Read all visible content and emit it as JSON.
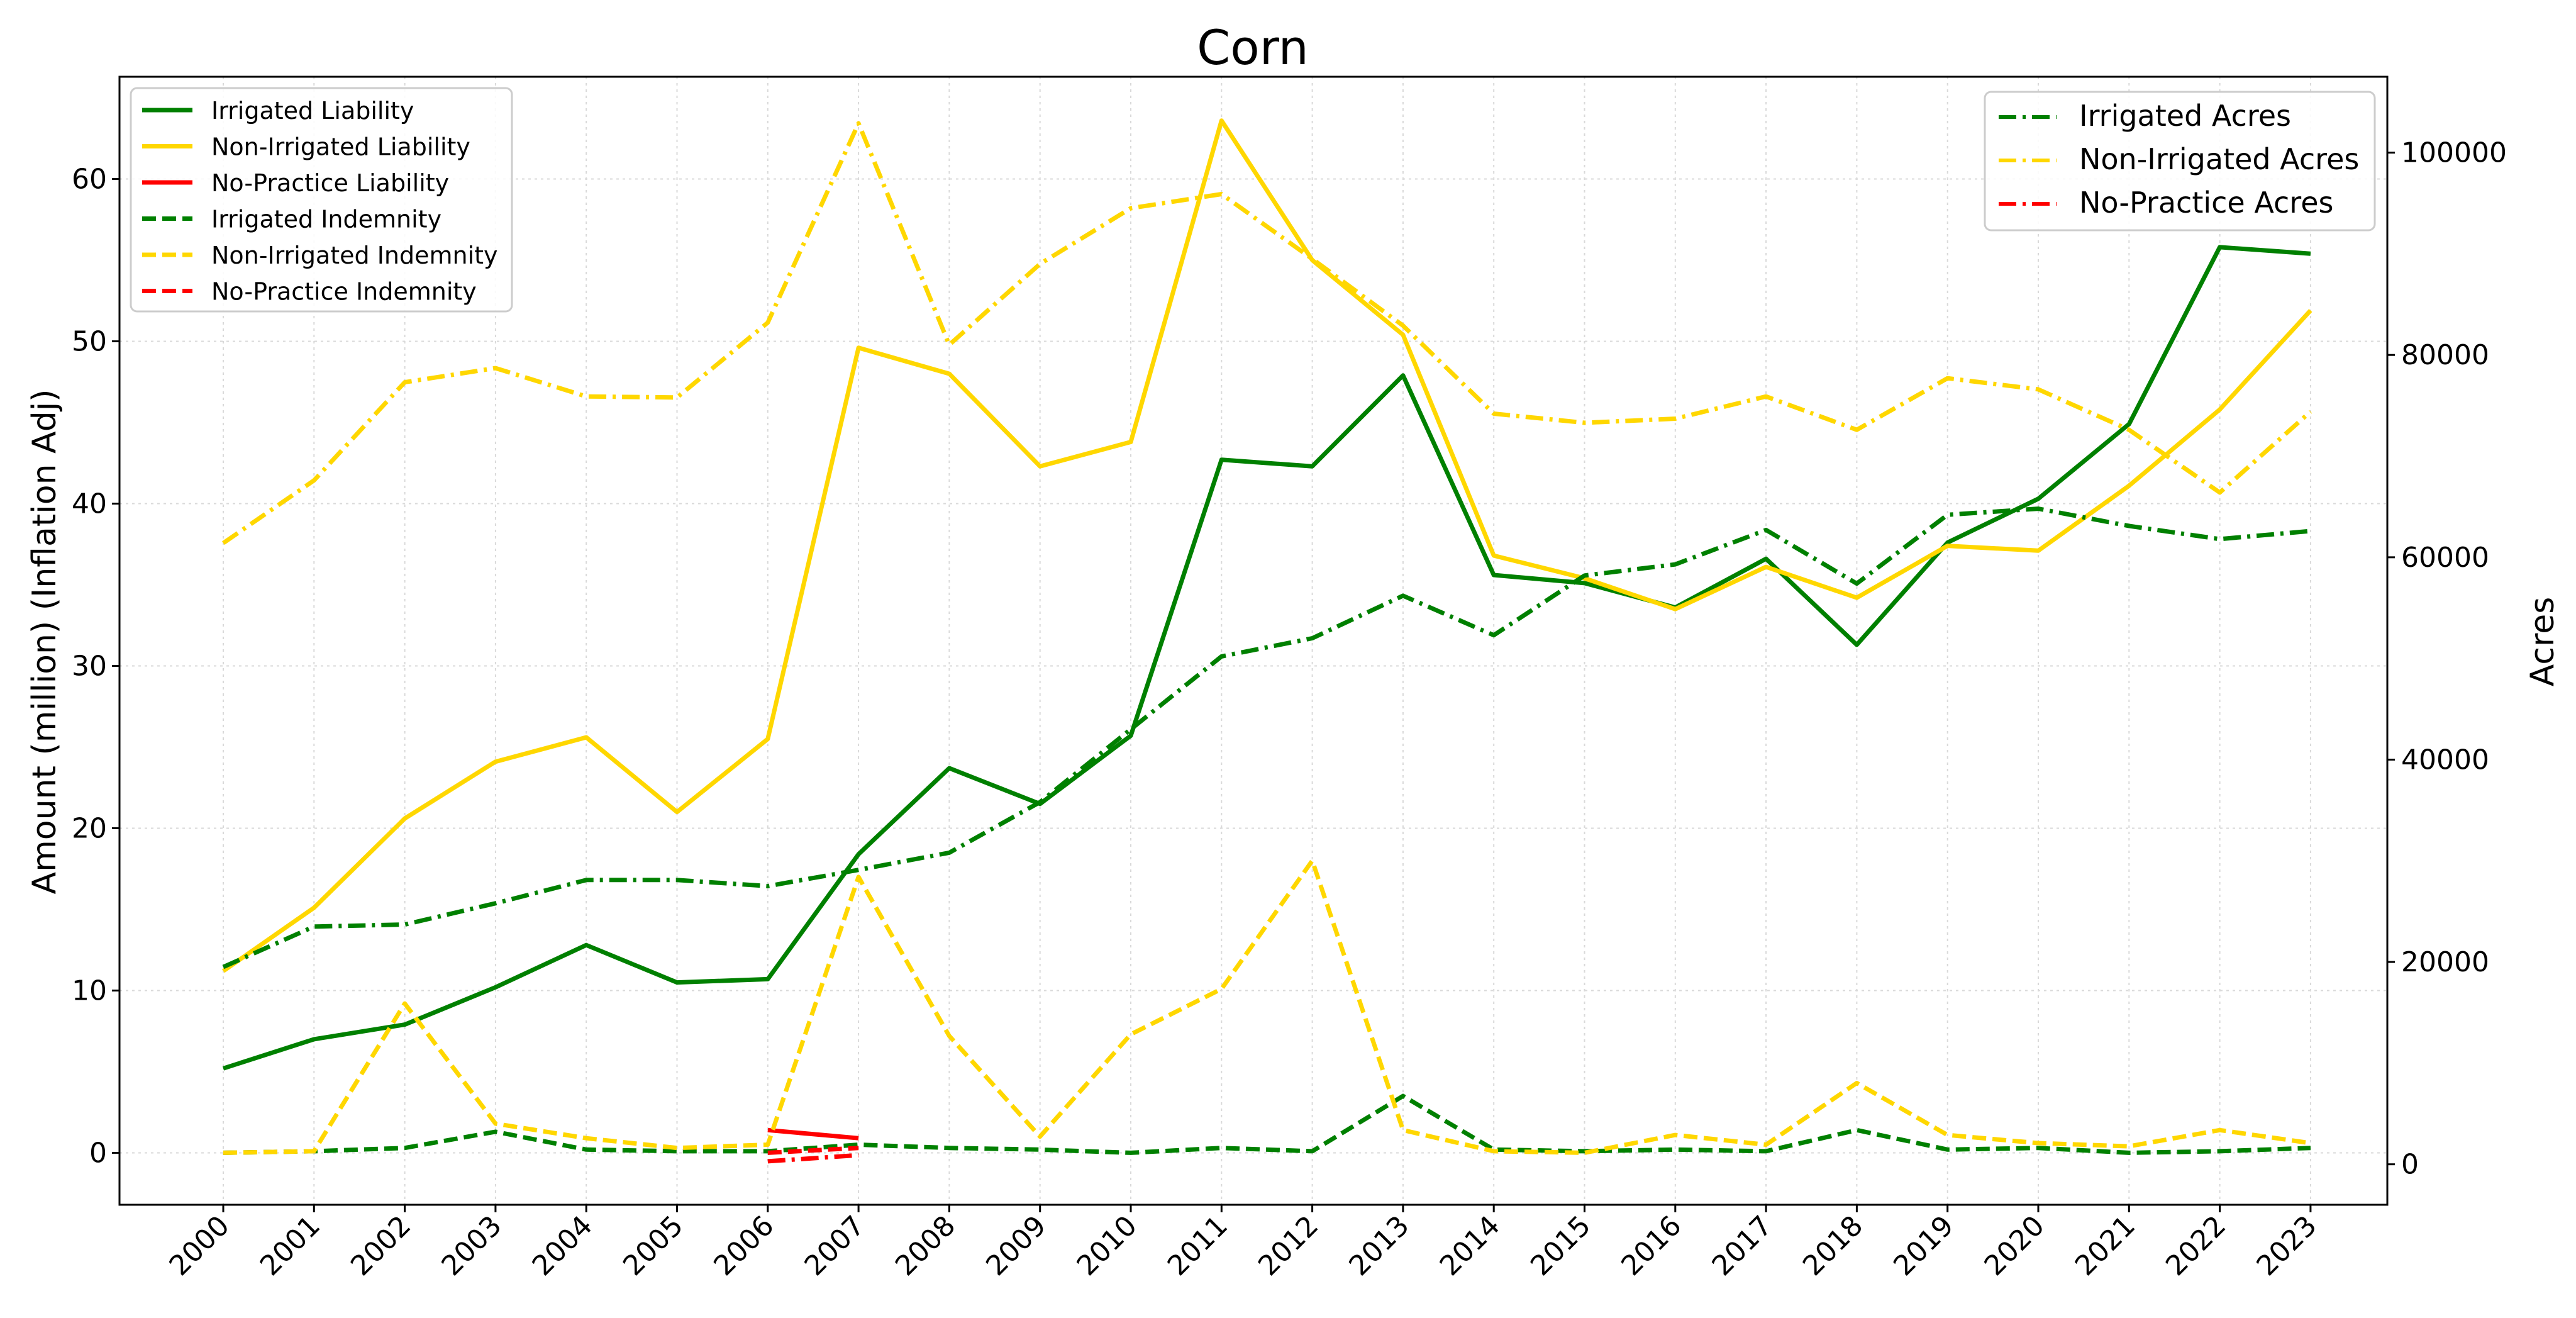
{
  "chart_data": {
    "type": "line",
    "title": "Corn",
    "xlabel": "",
    "ylabel": "Amount (million) (Inflation Adj)",
    "y2label": "Acres",
    "categories": [
      "2000",
      "2001",
      "2002",
      "2003",
      "2004",
      "2005",
      "2006",
      "2007",
      "2008",
      "2009",
      "2010",
      "2011",
      "2012",
      "2013",
      "2014",
      "2015",
      "2016",
      "2017",
      "2018",
      "2019",
      "2020",
      "2021",
      "2022",
      "2023"
    ],
    "ylim": [
      -3.2,
      66.3
    ],
    "y2lim": [
      -4000,
      107500
    ],
    "yticks": [
      0,
      10,
      20,
      30,
      40,
      50,
      60
    ],
    "y2ticks": [
      0,
      20000,
      40000,
      60000,
      80000,
      100000
    ],
    "grid": true,
    "legend_left_position": "upper left",
    "legend_right_position": "upper right",
    "colors": {
      "irrigated": "#008000",
      "non_irrigated": "#FFD700",
      "no_practice": "#FF0000"
    },
    "series": [
      {
        "name": "Irrigated Liability",
        "axis": "left",
        "style": "solid",
        "color": "#008000",
        "values": [
          5.2,
          7.0,
          7.9,
          10.2,
          12.8,
          10.5,
          10.7,
          18.4,
          23.7,
          21.5,
          25.7,
          42.7,
          42.3,
          47.9,
          35.6,
          35.1,
          33.6,
          36.6,
          31.3,
          37.6,
          40.3,
          44.9,
          55.8,
          55.4
        ]
      },
      {
        "name": "Non-Irrigated Liability",
        "axis": "left",
        "style": "solid",
        "color": "#FFD700",
        "values": [
          11.2,
          15.1,
          20.6,
          24.1,
          25.6,
          21.0,
          25.5,
          49.6,
          48.0,
          42.3,
          43.8,
          63.6,
          55.0,
          50.4,
          36.8,
          35.4,
          33.5,
          36.1,
          34.2,
          37.4,
          37.1,
          41.1,
          45.8,
          51.9
        ]
      },
      {
        "name": "No-Practice Liability",
        "axis": "left",
        "style": "solid",
        "color": "#FF0000",
        "values": [
          null,
          null,
          null,
          null,
          null,
          null,
          1.4,
          0.9,
          null,
          null,
          null,
          null,
          null,
          null,
          null,
          null,
          null,
          null,
          null,
          null,
          null,
          null,
          null,
          null
        ]
      },
      {
        "name": "Irrigated Indemnity",
        "axis": "left",
        "style": "dashed",
        "color": "#008000",
        "values": [
          0.0,
          0.1,
          0.3,
          1.3,
          0.2,
          0.1,
          0.1,
          0.5,
          0.3,
          0.2,
          0.0,
          0.3,
          0.1,
          3.5,
          0.2,
          0.1,
          0.2,
          0.1,
          1.4,
          0.2,
          0.3,
          0.0,
          0.1,
          0.3
        ]
      },
      {
        "name": "Non-Irrigated Indemnity",
        "axis": "left",
        "style": "dashed",
        "color": "#FFD700",
        "values": [
          0.0,
          0.1,
          9.2,
          1.8,
          0.9,
          0.3,
          0.5,
          17.0,
          7.2,
          1.0,
          7.3,
          10.1,
          18.0,
          1.4,
          0.1,
          0.0,
          1.1,
          0.5,
          4.3,
          1.1,
          0.6,
          0.4,
          1.4,
          0.6
        ]
      },
      {
        "name": "No-Practice Indemnity",
        "axis": "left",
        "style": "dashed",
        "color": "#FF0000",
        "values": [
          null,
          null,
          null,
          null,
          null,
          null,
          0.0,
          0.3,
          null,
          null,
          null,
          null,
          null,
          null,
          null,
          null,
          null,
          null,
          null,
          null,
          null,
          null,
          null,
          null
        ]
      },
      {
        "name": "Irrigated Acres",
        "axis": "right",
        "style": "dashdot",
        "color": "#008000",
        "values": [
          19500,
          23500,
          23700,
          25800,
          28100,
          28100,
          27500,
          29100,
          30800,
          35800,
          43000,
          50200,
          52000,
          56200,
          52300,
          58200,
          59300,
          62700,
          57400,
          64200,
          64800,
          63100,
          61800,
          62600
        ]
      },
      {
        "name": "Non-Irrigated Acres",
        "axis": "right",
        "style": "dashdot",
        "color": "#FFD700",
        "values": [
          61400,
          67600,
          77300,
          78700,
          75900,
          75800,
          83200,
          102900,
          81000,
          89000,
          94500,
          95900,
          89500,
          82900,
          74200,
          73300,
          73700,
          75900,
          72600,
          77700,
          76600,
          72600,
          66400,
          74400
        ]
      },
      {
        "name": "No-Practice Acres",
        "axis": "right",
        "style": "dashdot",
        "color": "#FF0000",
        "values": [
          null,
          null,
          null,
          null,
          null,
          null,
          300,
          900,
          null,
          null,
          null,
          null,
          null,
          null,
          null,
          null,
          null,
          null,
          null,
          null,
          null,
          null,
          null,
          null
        ]
      }
    ]
  }
}
